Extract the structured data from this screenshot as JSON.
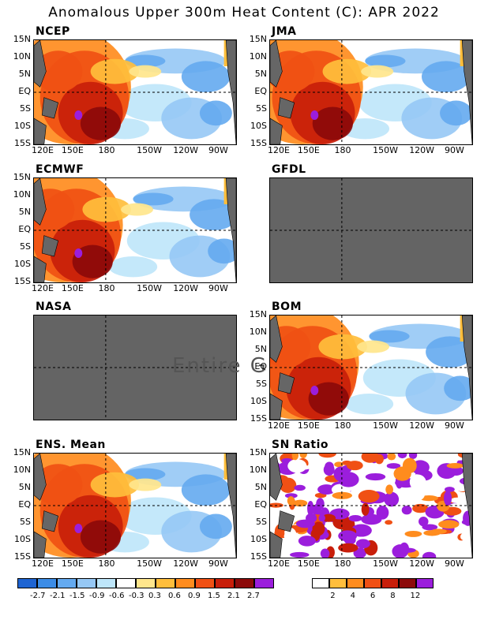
{
  "title": "Anomalous Upper 300m Heat Content (C): APR 2022",
  "panels": [
    {
      "name": "NCEP",
      "type": "anomaly"
    },
    {
      "name": "JMA",
      "type": "anomaly"
    },
    {
      "name": "ECMWF",
      "type": "anomaly"
    },
    {
      "name": "GFDL",
      "type": "missing"
    },
    {
      "name": "NASA",
      "type": "missing"
    },
    {
      "name": "BOM",
      "type": "anomaly"
    },
    {
      "name": "ENS. Mean",
      "type": "anomaly"
    },
    {
      "name": "SN Ratio",
      "type": "snratio"
    }
  ],
  "lat_labels": [
    "15N",
    "10N",
    "5N",
    "EQ",
    "5S",
    "10S",
    "15S"
  ],
  "lon_labels": [
    "120E",
    "150E",
    "180",
    "150W",
    "120W",
    "90W"
  ],
  "missing_text": "Entire Gr",
  "anomaly_colorbar": {
    "colors": [
      "#1e64d2",
      "#3c8ce6",
      "#64aaf0",
      "#96c8f5",
      "#bee6fa",
      "#ffffff",
      "#ffe68c",
      "#ffbe3c",
      "#ff8c1e",
      "#f05014",
      "#c81e0a",
      "#8c0a0a",
      "#9b1edc"
    ],
    "labels": [
      "-2.7",
      "-2.1",
      "-1.5",
      "-0.9",
      "-0.6",
      "-0.3",
      "0.3",
      "0.6",
      "0.9",
      "1.5",
      "2.1",
      "2.7"
    ]
  },
  "sn_colorbar": {
    "colors": [
      "#ffffff",
      "#ffbe3c",
      "#ff8c1e",
      "#f05014",
      "#c81e0a",
      "#8c0a0a",
      "#9b1edc"
    ],
    "labels": [
      "2",
      "4",
      "6",
      "8",
      "12"
    ]
  }
}
